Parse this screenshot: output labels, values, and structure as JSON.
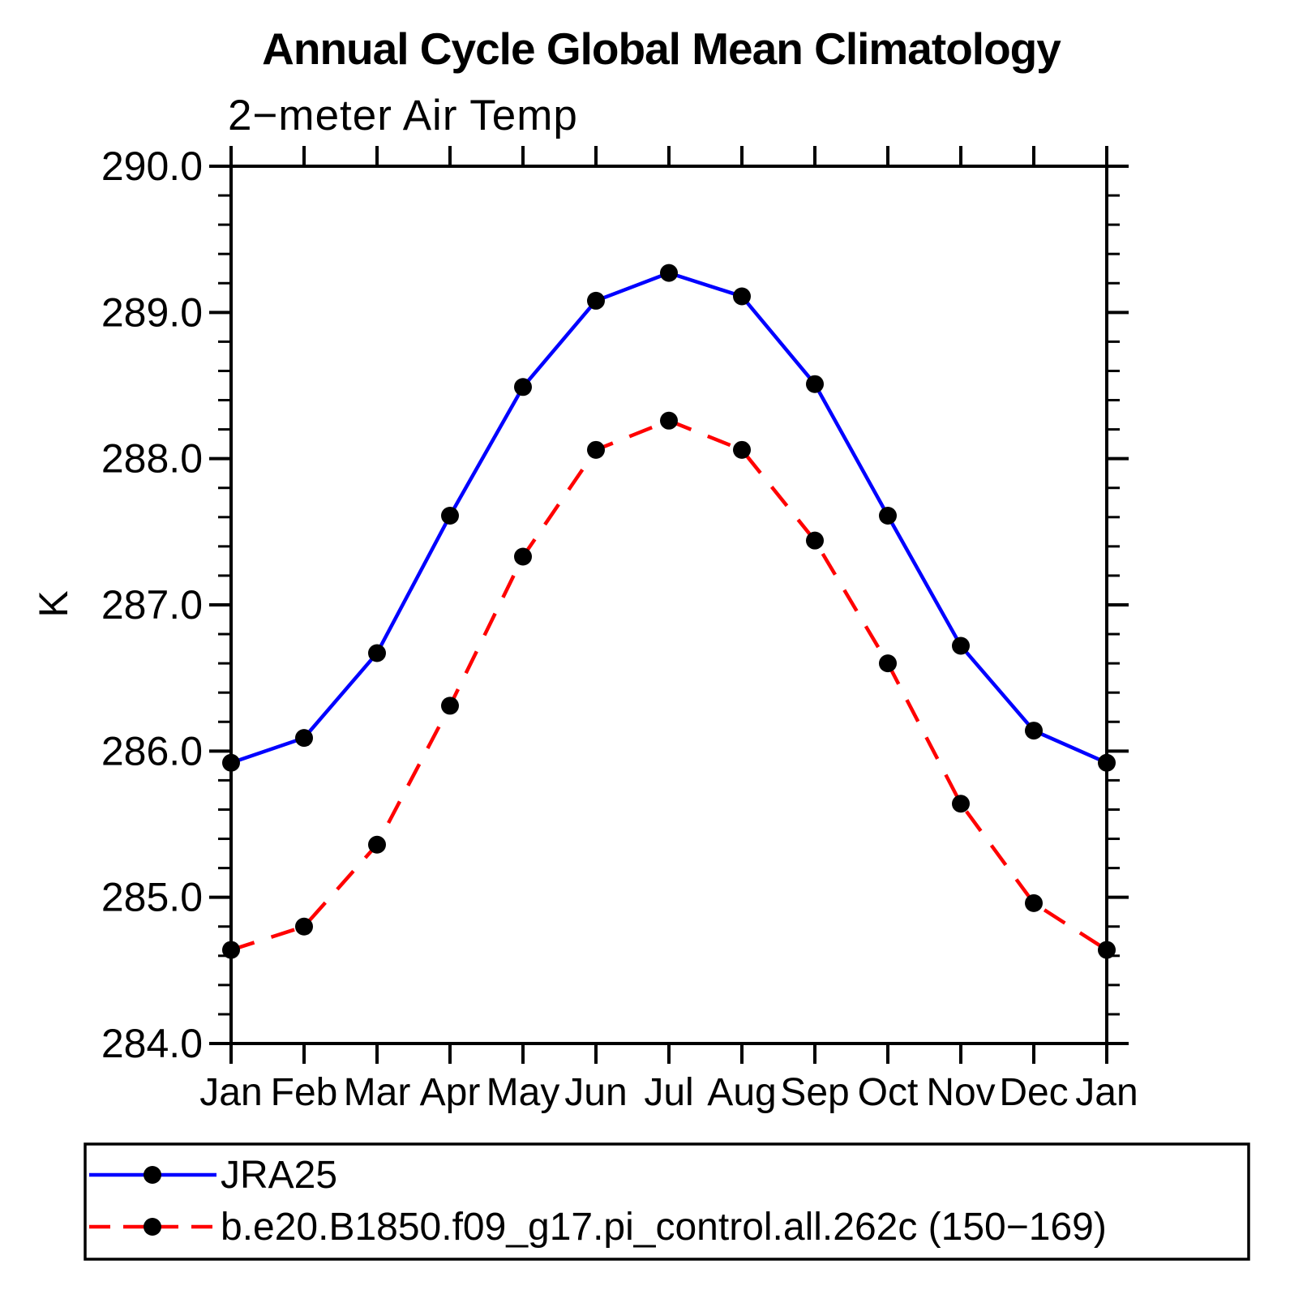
{
  "page": {
    "background": "#ffffff"
  },
  "header": {
    "title": "Annual Cycle Global Mean Climatology",
    "subtitle": "2−meter Air Temp"
  },
  "chart_data": {
    "type": "line",
    "title": "Annual Cycle Global Mean Climatology",
    "subtitle": "2−meter Air Temp",
    "ylabel": "K",
    "xlabel": "",
    "categories": [
      "Jan",
      "Feb",
      "Mar",
      "Apr",
      "May",
      "Jun",
      "Jul",
      "Aug",
      "Sep",
      "Oct",
      "Nov",
      "Dec",
      "Jan"
    ],
    "ylim": [
      284.0,
      290.0
    ],
    "ytick_interval": 1.0,
    "yminor_interval": 0.2,
    "ytick_label_format": "one-decimal",
    "grid": false,
    "legend_position": "bottom",
    "axis_color": "#000000",
    "marker_radius": 11,
    "series": [
      {
        "name": "JRA25",
        "color": "#0000ff",
        "line_style": "solid",
        "marker": "circle",
        "marker_color": "#000000",
        "values": [
          285.92,
          286.09,
          286.67,
          287.61,
          288.49,
          289.08,
          289.27,
          289.11,
          288.51,
          287.61,
          286.72,
          286.14,
          285.92
        ]
      },
      {
        "name": "b.e20.B1850.f09_g17.pi_control.all.262c (150−169)",
        "color": "#ff0000",
        "line_style": "dashed",
        "marker": "circle",
        "marker_color": "#000000",
        "values": [
          284.64,
          284.8,
          285.36,
          286.31,
          287.33,
          288.06,
          288.26,
          288.06,
          287.44,
          286.6,
          285.64,
          284.96,
          284.64
        ]
      }
    ]
  }
}
